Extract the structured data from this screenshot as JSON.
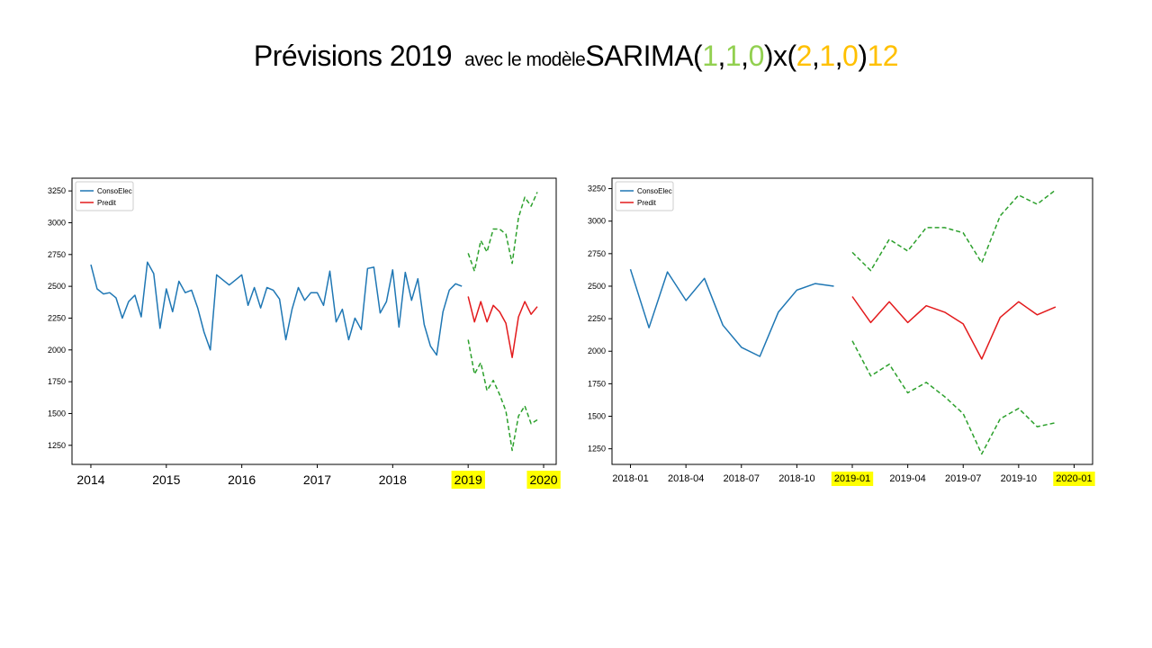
{
  "title": {
    "main": "Prévisions 2019",
    "connector": "avec le modèle",
    "model_prefix": "SARIMA(",
    "p": "1",
    "c1": ",",
    "d": "1",
    "c2": ",",
    "q": "0",
    "mid": ")x(",
    "P": "2",
    "c3": ",",
    "D": "1",
    "c4": ",",
    "Q": "0",
    "close": ")",
    "season": "12"
  },
  "colors": {
    "observed": "#1f77b4",
    "predicted": "#e31a1c",
    "interval": "#2ca02c",
    "nonseasonal": "#92d050",
    "seasonal": "#ffc000",
    "highlight": "#ffff00"
  },
  "legend": {
    "observed": "ConsoElec",
    "predicted": "Predit",
    "placement": "top-left"
  },
  "chart_data": [
    {
      "type": "line",
      "ylim": [
        1100,
        3350
      ],
      "yticks": [
        1250,
        1500,
        1750,
        2000,
        2250,
        2500,
        2750,
        3000,
        3250
      ],
      "xticks": [
        "2014",
        "2015",
        "2016",
        "2017",
        "2018",
        "2019",
        "2020"
      ],
      "highlighted_ticks": [
        "2019",
        "2020"
      ],
      "series": [
        {
          "name": "ConsoElec",
          "x": [
            "2014-01",
            "2014-02",
            "2014-03",
            "2014-04",
            "2014-05",
            "2014-06",
            "2014-07",
            "2014-08",
            "2014-09",
            "2014-10",
            "2014-11",
            "2014-12",
            "2015-01",
            "2015-02",
            "2015-03",
            "2015-04",
            "2015-05",
            "2015-06",
            "2015-07",
            "2015-08",
            "2015-09",
            "2015-10",
            "2015-11",
            "2015-12",
            "2016-01",
            "2016-02",
            "2016-03",
            "2016-04",
            "2016-05",
            "2016-06",
            "2016-07",
            "2016-08",
            "2016-09",
            "2016-10",
            "2016-11",
            "2016-12",
            "2017-01",
            "2017-02",
            "2017-03",
            "2017-04",
            "2017-05",
            "2017-06",
            "2017-07",
            "2017-08",
            "2017-09",
            "2017-10",
            "2017-11",
            "2017-12",
            "2018-01",
            "2018-02",
            "2018-03",
            "2018-04",
            "2018-05",
            "2018-06",
            "2018-07",
            "2018-08",
            "2018-09",
            "2018-10",
            "2018-11",
            "2018-12"
          ],
          "values": [
            2670,
            2480,
            2440,
            2450,
            2410,
            2250,
            2380,
            2430,
            2260,
            2690,
            2600,
            2170,
            2480,
            2300,
            2540,
            2450,
            2470,
            2330,
            2140,
            2000,
            2590,
            2550,
            2510,
            2550,
            2590,
            2350,
            2490,
            2330,
            2490,
            2470,
            2400,
            2080,
            2320,
            2490,
            2390,
            2450,
            2450,
            2350,
            2620,
            2220,
            2320,
            2080,
            2250,
            2160,
            2640,
            2650,
            2290,
            2380,
            2630,
            2180,
            2610,
            2390,
            2560,
            2200,
            2030,
            1960,
            2300,
            2470,
            2520,
            2500
          ]
        },
        {
          "name": "Predit",
          "x": [
            "2019-01",
            "2019-02",
            "2019-03",
            "2019-04",
            "2019-05",
            "2019-06",
            "2019-07",
            "2019-08",
            "2019-09",
            "2019-10",
            "2019-11",
            "2019-12"
          ],
          "values": [
            2420,
            2220,
            2380,
            2220,
            2350,
            2300,
            2210,
            1940,
            2260,
            2380,
            2280,
            2340
          ]
        },
        {
          "x": [
            "2019-01",
            "2019-02",
            "2019-03",
            "2019-04",
            "2019-05",
            "2019-06",
            "2019-07",
            "2019-08",
            "2019-09",
            "2019-10",
            "2019-11",
            "2019-12"
          ],
          "values": [
            2760,
            2620,
            2860,
            2770,
            2950,
            2950,
            2910,
            2680,
            3040,
            3200,
            3130,
            3240
          ]
        },
        {
          "x": [
            "2019-01",
            "2019-02",
            "2019-03",
            "2019-04",
            "2019-05",
            "2019-06",
            "2019-07",
            "2019-08",
            "2019-09",
            "2019-10",
            "2019-11",
            "2019-12"
          ],
          "values": [
            2080,
            1810,
            1900,
            1680,
            1760,
            1650,
            1520,
            1210,
            1480,
            1560,
            1420,
            1450
          ]
        }
      ]
    },
    {
      "type": "line",
      "ylim": [
        1130,
        3330
      ],
      "yticks": [
        1250,
        1500,
        1750,
        2000,
        2250,
        2500,
        2750,
        3000,
        3250
      ],
      "xticks": [
        "2018-01",
        "2018-04",
        "2018-07",
        "2018-10",
        "2019-01",
        "2019-04",
        "2019-07",
        "2019-10",
        "2020-01"
      ],
      "highlighted_ticks": [
        "2019-01",
        "2020-01"
      ],
      "series": [
        {
          "name": "ConsoElec",
          "x": [
            "2018-01",
            "2018-02",
            "2018-03",
            "2018-04",
            "2018-05",
            "2018-06",
            "2018-07",
            "2018-08",
            "2018-09",
            "2018-10",
            "2018-11",
            "2018-12"
          ],
          "values": [
            2630,
            2180,
            2610,
            2390,
            2560,
            2200,
            2030,
            1960,
            2300,
            2470,
            2520,
            2500
          ]
        },
        {
          "name": "Predit",
          "x": [
            "2019-01",
            "2019-02",
            "2019-03",
            "2019-04",
            "2019-05",
            "2019-06",
            "2019-07",
            "2019-08",
            "2019-09",
            "2019-10",
            "2019-11",
            "2019-12"
          ],
          "values": [
            2420,
            2220,
            2380,
            2220,
            2350,
            2300,
            2210,
            1940,
            2260,
            2380,
            2280,
            2340
          ]
        },
        {
          "x": [
            "2019-01",
            "2019-02",
            "2019-03",
            "2019-04",
            "2019-05",
            "2019-06",
            "2019-07",
            "2019-08",
            "2019-09",
            "2019-10",
            "2019-11",
            "2019-12"
          ],
          "values": [
            2760,
            2620,
            2860,
            2770,
            2950,
            2950,
            2910,
            2680,
            3040,
            3200,
            3130,
            3240
          ]
        },
        {
          "x": [
            "2019-01",
            "2019-02",
            "2019-03",
            "2019-04",
            "2019-05",
            "2019-06",
            "2019-07",
            "2019-08",
            "2019-09",
            "2019-10",
            "2019-11",
            "2019-12"
          ],
          "values": [
            2080,
            1810,
            1900,
            1680,
            1760,
            1650,
            1520,
            1210,
            1480,
            1560,
            1420,
            1450
          ]
        }
      ]
    }
  ]
}
